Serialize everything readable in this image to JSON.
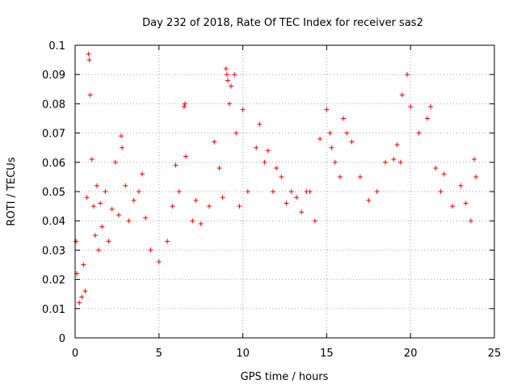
{
  "chart_data": {
    "type": "scatter",
    "title": "Day 232 of 2018, Rate Of TEC Index for receiver sas2",
    "xlabel": "GPS time / hours",
    "ylabel": "ROTI / TECUs",
    "xlim": [
      0,
      25
    ],
    "ylim": [
      0,
      0.1
    ],
    "x_ticks": [
      0,
      5,
      10,
      15,
      20,
      25
    ],
    "x_tick_labels": [
      "0",
      "5",
      "10",
      "15",
      "20",
      "25"
    ],
    "y_ticks": [
      0,
      0.01,
      0.02,
      0.03,
      0.04,
      0.05,
      0.06,
      0.07,
      0.08,
      0.09,
      0.1
    ],
    "y_tick_labels": [
      "0",
      "0.01",
      "0.02",
      "0.03",
      "0.04",
      "0.05",
      "0.06",
      "0.07",
      "0.08",
      "0.09",
      "0.1"
    ],
    "grid": true,
    "marker": "+",
    "marker_color": "#ff0000",
    "x_range": [
      0,
      24
    ],
    "y_range": [
      0.004,
      0.097
    ],
    "series": [
      {
        "x": [
          0.05,
          0.1,
          0.25,
          0.4,
          0.5,
          0.6,
          0.7,
          0.8,
          0.85,
          0.9,
          1.0,
          1.1,
          1.2,
          1.3,
          1.4,
          1.5,
          1.6,
          1.8,
          2.0,
          2.2,
          2.4,
          2.6,
          2.75,
          2.8,
          3.0,
          3.2,
          3.5,
          3.8,
          4.0,
          4.2,
          4.5,
          5.0,
          5.5,
          5.8,
          6.0,
          6.2,
          6.5,
          6.55,
          6.6,
          7.0,
          7.2,
          7.5,
          8.0,
          8.3,
          8.6,
          8.8,
          9.0,
          9.05,
          9.1,
          9.2,
          9.3,
          9.5,
          9.6,
          9.8,
          10.0,
          10.3,
          10.8,
          11.0,
          11.3,
          11.5,
          11.8,
          12.0,
          12.3,
          12.6,
          12.9,
          13.2,
          13.5,
          13.8,
          14.0,
          14.3,
          14.6,
          15.0,
          15.2,
          15.3,
          15.5,
          15.8,
          16.0,
          16.2,
          16.5,
          17.0,
          17.5,
          18.0,
          18.5,
          19.0,
          19.2,
          19.4,
          19.5,
          19.8,
          20.0,
          20.5,
          21.0,
          21.2,
          21.5,
          21.8,
          22.0,
          22.5,
          23.0,
          23.3,
          23.6,
          23.8,
          23.9
        ],
        "y": [
          0.033,
          0.022,
          0.012,
          0.014,
          0.025,
          0.016,
          0.048,
          0.097,
          0.095,
          0.083,
          0.061,
          0.045,
          0.035,
          0.052,
          0.03,
          0.046,
          0.038,
          0.05,
          0.033,
          0.044,
          0.06,
          0.042,
          0.069,
          0.065,
          0.052,
          0.04,
          0.047,
          0.05,
          0.056,
          0.041,
          0.03,
          0.026,
          0.033,
          0.045,
          0.059,
          0.05,
          0.079,
          0.08,
          0.062,
          0.04,
          0.047,
          0.039,
          0.045,
          0.067,
          0.058,
          0.048,
          0.092,
          0.09,
          0.088,
          0.08,
          0.086,
          0.09,
          0.07,
          0.045,
          0.078,
          0.05,
          0.065,
          0.073,
          0.06,
          0.064,
          0.05,
          0.058,
          0.055,
          0.046,
          0.05,
          0.048,
          0.043,
          0.05,
          0.05,
          0.04,
          0.068,
          0.078,
          0.07,
          0.065,
          0.06,
          0.055,
          0.075,
          0.07,
          0.067,
          0.055,
          0.047,
          0.05,
          0.06,
          0.061,
          0.066,
          0.06,
          0.083,
          0.09,
          0.079,
          0.07,
          0.075,
          0.079,
          0.058,
          0.05,
          0.056,
          0.045,
          0.052,
          0.046,
          0.04,
          0.061,
          0.055
        ]
      }
    ]
  }
}
